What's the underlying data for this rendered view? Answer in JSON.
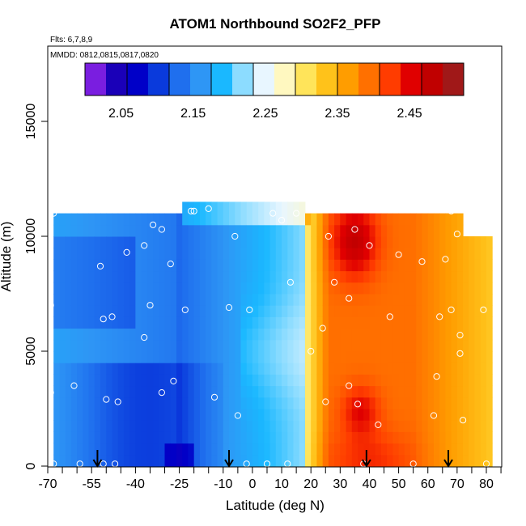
{
  "chart_data": {
    "type": "heatmap",
    "title": "ATOM1 Northbound SO2F2_PFP",
    "subtitle_lines": [
      "Flts: 6,7,8,9",
      "MMDD: 0812,0815,0817,0820"
    ],
    "xlabel": "Latitude (deg N)",
    "ylabel": "Altitude (m)",
    "xlim": [
      -70,
      85
    ],
    "ylim": [
      0,
      18000
    ],
    "x_ticks": [
      -70,
      -55,
      -40,
      -25,
      -10,
      0,
      10,
      20,
      30,
      40,
      50,
      60,
      70,
      80
    ],
    "x_tick_labels": [
      "-70",
      "-55",
      "-40",
      "-25",
      "-10",
      "0",
      "10",
      "20",
      "30",
      "40",
      "50",
      "60",
      "70",
      "80"
    ],
    "x_minor_ticks": [
      -65,
      -60,
      -50,
      -45,
      -35,
      -30,
      -20,
      -15,
      -5,
      5,
      15,
      25,
      35,
      45,
      55,
      65,
      75,
      85
    ],
    "y_ticks": [
      0,
      5000,
      10000,
      15000
    ],
    "y_tick_labels": [
      "0",
      "5000",
      "10000",
      "15000"
    ],
    "colorbar": {
      "min": 2.0,
      "max": 2.525,
      "tick_values": [
        2.05,
        2.15,
        2.25,
        2.35,
        2.45
      ],
      "tick_labels": [
        "2.05",
        "2.15",
        "2.25",
        "2.35",
        "2.45"
      ],
      "colors": [
        "#7a1ee0",
        "#1a00b8",
        "#0000c8",
        "#0a3adc",
        "#1f6fee",
        "#2e96f5",
        "#1ab8ff",
        "#8cdcff",
        "#e8f6ff",
        "#fff8c0",
        "#ffe45a",
        "#ffc21a",
        "#ff9d00",
        "#ff7000",
        "#ff3c00",
        "#e00000",
        "#c00000",
        "#a01818"
      ]
    },
    "grid": false,
    "legend": "none",
    "sample_points": [
      [
        -68,
        11000
      ],
      [
        -69,
        7000
      ],
      [
        -69,
        3200
      ],
      [
        -68,
        100
      ],
      [
        -61,
        3500
      ],
      [
        -59,
        100
      ],
      [
        -52,
        8700
      ],
      [
        -51,
        6400
      ],
      [
        -48,
        6500
      ],
      [
        -47,
        100
      ],
      [
        -51,
        100
      ],
      [
        -50,
        2900
      ],
      [
        -46,
        2800
      ],
      [
        -43,
        9300
      ],
      [
        -37,
        9600
      ],
      [
        -35,
        7000
      ],
      [
        -37,
        5600
      ],
      [
        -34,
        10500
      ],
      [
        -31,
        10300
      ],
      [
        -28,
        8800
      ],
      [
        -31,
        3200
      ],
      [
        -27,
        3700
      ],
      [
        -23,
        6800
      ],
      [
        -21,
        11100
      ],
      [
        -20,
        11100
      ],
      [
        -15,
        11200
      ],
      [
        -13,
        3000
      ],
      [
        -8,
        6900
      ],
      [
        -6,
        10000
      ],
      [
        -5,
        2200
      ],
      [
        -1,
        6800
      ],
      [
        -2,
        100
      ],
      [
        5,
        100
      ],
      [
        7,
        11000
      ],
      [
        10,
        10700
      ],
      [
        12,
        100
      ],
      [
        13,
        8000
      ],
      [
        15,
        11000
      ],
      [
        20,
        5000
      ],
      [
        24,
        6000
      ],
      [
        26,
        10000
      ],
      [
        25,
        2800
      ],
      [
        28,
        8000
      ],
      [
        33,
        3500
      ],
      [
        33,
        7300
      ],
      [
        35,
        10300
      ],
      [
        36,
        2700
      ],
      [
        38,
        100
      ],
      [
        40,
        9600
      ],
      [
        43,
        1800
      ],
      [
        47,
        6500
      ],
      [
        50,
        9200
      ],
      [
        55,
        100
      ],
      [
        58,
        8900
      ],
      [
        62,
        2200
      ],
      [
        63,
        3900
      ],
      [
        64,
        6500
      ],
      [
        66,
        9000
      ],
      [
        68,
        11100
      ],
      [
        68,
        6800
      ],
      [
        70,
        10100
      ],
      [
        71,
        5700
      ],
      [
        71,
        4900
      ],
      [
        72,
        2000
      ],
      [
        79,
        6800
      ],
      [
        80,
        100
      ]
    ],
    "arrows_x": [
      -53,
      -8,
      39,
      67
    ],
    "data_extent": {
      "x_min": -70,
      "x_max": 82,
      "y_min": 0,
      "y_max": 11500
    }
  }
}
